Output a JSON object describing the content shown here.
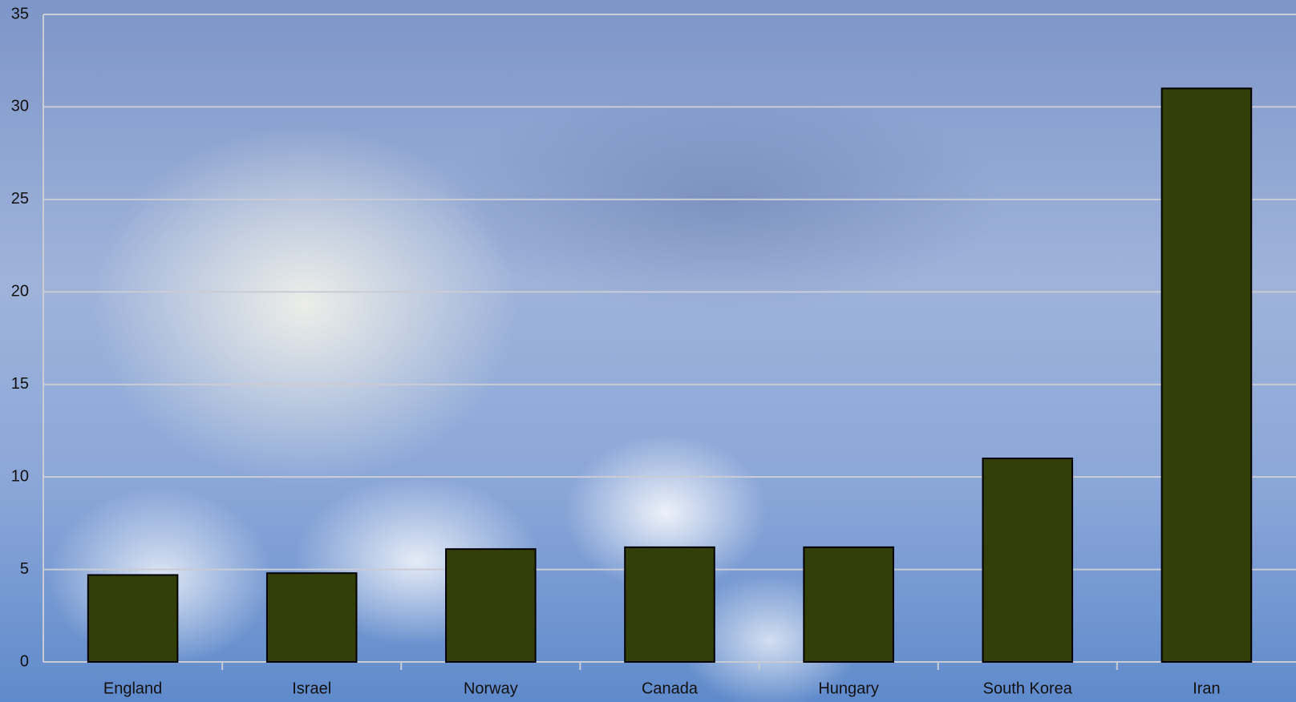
{
  "chart_data": {
    "type": "bar",
    "categories": [
      "England",
      "Israel",
      "Norway",
      "Canada",
      "Hungary",
      "South Korea",
      "Iran"
    ],
    "values": [
      4.7,
      4.8,
      6.1,
      6.2,
      6.2,
      11,
      31
    ],
    "color": "#333f08",
    "ylim": [
      0,
      35
    ],
    "yticks": [
      0,
      5,
      10,
      15,
      20,
      25,
      30,
      35
    ],
    "grid": true
  }
}
